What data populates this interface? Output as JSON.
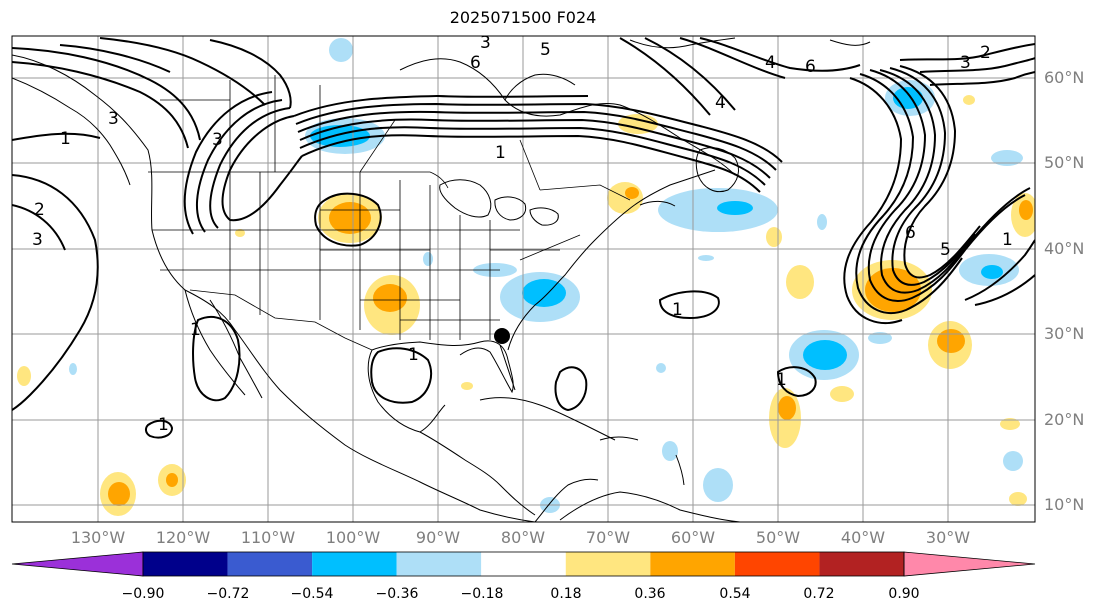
{
  "title": "2025071500 F024",
  "lat_labels": [
    "60°N",
    "50°N",
    "40°N",
    "30°N",
    "20°N",
    "10°N"
  ],
  "lon_labels": [
    "130°W",
    "120°W",
    "110°W",
    "100°W",
    "90°W",
    "80°W",
    "70°W",
    "60°W",
    "50°W",
    "40°W",
    "30°W"
  ],
  "contour_labels": {
    "l1": "1",
    "l2": "2",
    "l3": "3",
    "l4": "4",
    "l5": "5",
    "l6": "6"
  },
  "colorbar": {
    "ticks": [
      "−0.90",
      "−0.72",
      "−0.54",
      "−0.36",
      "−0.18",
      "0.18",
      "0.36",
      "0.54",
      "0.72",
      "0.90"
    ],
    "colors": [
      "#9b30d9",
      "#00008b",
      "#3a5bd0",
      "#00bfff",
      "#aedff7",
      "#ffffff",
      "#ffe680",
      "#ffa500",
      "#ff4500",
      "#b22222",
      "#ff88aa"
    ]
  },
  "colors": {
    "positive_light": "#ffe680",
    "positive_mid": "#ffa500",
    "negative_light": "#aedff7",
    "negative_mid": "#00bfff"
  }
}
